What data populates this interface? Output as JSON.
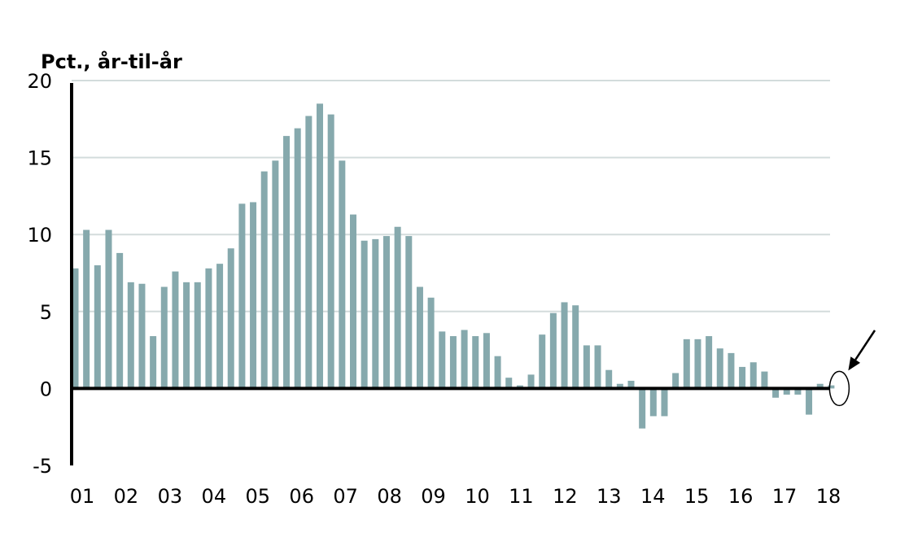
{
  "chart_data": {
    "type": "bar",
    "ylabel": "Pct., år-til-år",
    "ylim": [
      -5,
      20
    ],
    "yticks": [
      "20",
      "15",
      "10",
      "5",
      "0",
      "-5"
    ],
    "ytick_values": [
      20,
      15,
      10,
      5,
      0,
      -5
    ],
    "xticks": [
      "01",
      "02",
      "03",
      "04",
      "05",
      "06",
      "07",
      "08",
      "09",
      "10",
      "11",
      "12",
      "13",
      "14",
      "15",
      "16",
      "17",
      "18"
    ],
    "x_start_year": 2001,
    "x_end_year": 2018,
    "grid": true,
    "bar_color": "#86a9ad",
    "annotation": "circle-and-arrow-at-latest-value",
    "values": [
      7.8,
      10.3,
      8.0,
      10.3,
      8.8,
      6.9,
      6.8,
      3.4,
      6.6,
      7.6,
      6.9,
      6.9,
      7.8,
      8.1,
      9.1,
      12.0,
      12.1,
      14.1,
      14.8,
      16.4,
      16.9,
      17.7,
      18.5,
      17.8,
      14.8,
      11.3,
      9.6,
      9.7,
      9.9,
      10.5,
      9.9,
      6.6,
      5.9,
      3.7,
      3.4,
      3.8,
      3.4,
      3.6,
      2.1,
      0.7,
      0.2,
      0.9,
      3.5,
      4.9,
      5.6,
      5.4,
      2.8,
      2.8,
      1.2,
      0.3,
      0.5,
      -2.6,
      -1.8,
      -1.8,
      1.0,
      3.2,
      3.2,
      3.4,
      2.6,
      2.3,
      1.4,
      1.7,
      1.1,
      -0.6,
      -0.4,
      -0.4,
      -1.7,
      0.3,
      0.2
    ]
  }
}
